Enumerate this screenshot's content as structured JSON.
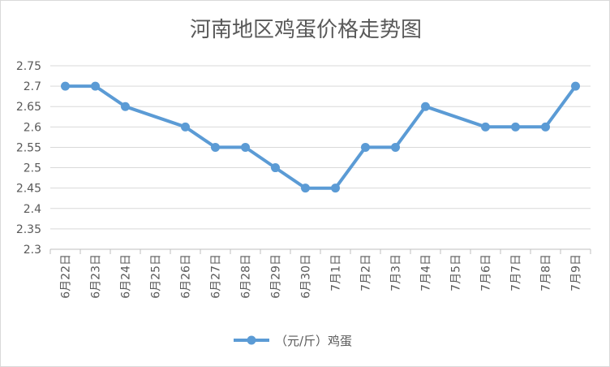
{
  "chart_data": {
    "type": "line",
    "title": "河南地区鸡蛋价格走势图",
    "xlabel": "",
    "ylabel": "",
    "categories": [
      "6月22日",
      "6月23日",
      "6月24日",
      "6月25日",
      "6月26日",
      "6月27日",
      "6月28日",
      "6月29日",
      "6月30日",
      "7月1日",
      "7月2日",
      "7月3日",
      "7月4日",
      "7月5日",
      "7月6日",
      "7月7日",
      "7月8日",
      "7月9日"
    ],
    "series": [
      {
        "name": "（元/斤）鸡蛋",
        "values": [
          2.7,
          2.7,
          2.65,
          null,
          2.6,
          2.55,
          2.55,
          2.5,
          2.45,
          2.45,
          2.55,
          2.55,
          2.65,
          null,
          2.6,
          2.6,
          2.6,
          2.7
        ],
        "color": "#5b9bd5"
      }
    ],
    "ylim": [
      2.3,
      2.75
    ],
    "yticks": [
      "2.3",
      "2.35",
      "2.4",
      "2.45",
      "2.5",
      "2.55",
      "2.6",
      "2.65",
      "2.7",
      "2.75"
    ],
    "grid": true,
    "legend": "bottom"
  }
}
